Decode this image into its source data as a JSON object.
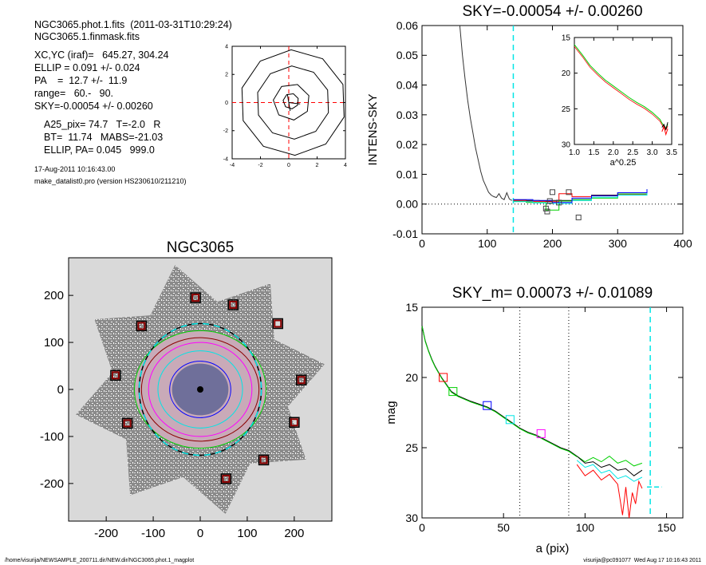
{
  "header": {
    "lines": [
      "NGC3065.phot.1.fits  (2011-03-31T10:29:24)",
      "NGC3065.1.finmask.fits"
    ],
    "params": [
      "XC,YC (iraf)=   645.27, 304.24",
      "ELLIP = 0.091 +/- 0.024",
      "PA    =  12.7 +/-  11.9",
      "range=   60.-   90.",
      "SKY=-0.00054 +/- 0.00260"
    ],
    "info": [
      "A25_pix= 74.7   T=-2.0   R",
      "BT=  11.74   MABS=-21.03",
      "ELLIP, PA= 0.045   999.0"
    ],
    "date": "17-Aug-2011 10:16:43.00",
    "program": "make_datalist0.pro (version HS230610/211210)"
  },
  "footer": {
    "path": "/home/visurija/NEWSAMPLE_200711.dir/NEW.dir/NGC3065.phot.1_magplot",
    "user": "visurija@pc091077  Wed Aug 17 10:16:43 2011"
  },
  "colors": {
    "cyan": "#00e5e5",
    "red": "#ff0000",
    "green": "#00d000",
    "blue": "#0000ff",
    "magenta": "#ff00ff",
    "darkred": "#8b0000",
    "image_bg": "#d9d9d9"
  },
  "chart_data": [
    {
      "id": "center",
      "type": "line",
      "title": "",
      "xlim": [
        -4,
        4
      ],
      "ylim": [
        -4,
        4
      ],
      "xticks": [
        -4,
        -2,
        0,
        2,
        4
      ],
      "yticks": [
        -4,
        -2,
        0,
        2,
        4
      ],
      "isophotes": [
        {
          "rx": 0.55,
          "ry": 0.55,
          "cx": 0.15,
          "cy": 0.1
        },
        {
          "rx": 1.3,
          "ry": 1.3,
          "cx": 0.2,
          "cy": 0.05
        },
        {
          "rx": 2.6,
          "ry": 2.6,
          "cx": 0.3,
          "cy": 0.0
        },
        {
          "rx": 3.75,
          "ry": 3.75,
          "cx": 0.3,
          "cy": 0.0
        }
      ],
      "crosshair_color": "red"
    },
    {
      "id": "sky",
      "type": "line",
      "title": "SKY=-0.00054 +/- 0.00260",
      "xlabel": "",
      "ylabel": "INTENS-SKY",
      "xlim": [
        0,
        400
      ],
      "ylim": [
        -0.01,
        0.06
      ],
      "xticks": [
        0,
        100,
        200,
        300,
        400
      ],
      "yticks": [
        -0.01,
        0.0,
        0.01,
        0.02,
        0.03,
        0.04,
        0.05,
        0.06
      ],
      "vline": 140,
      "profile": {
        "x": [
          58,
          62,
          66,
          70,
          74,
          78,
          82,
          86,
          90,
          94,
          98,
          102,
          106,
          110,
          114,
          118,
          122,
          126,
          130,
          134,
          138
        ],
        "y": [
          0.06,
          0.05,
          0.042,
          0.035,
          0.029,
          0.024,
          0.019,
          0.015,
          0.011,
          0.008,
          0.006,
          0.004,
          0.003,
          0.0025,
          0.0022,
          0.0035,
          0.002,
          0.0015,
          0.0038,
          0.0017,
          0.0012
        ]
      },
      "series": [
        {
          "color": "black",
          "x": [
            140,
            160,
            180,
            200,
            230,
            260,
            300,
            345
          ],
          "y": [
            0.0013,
            0.0012,
            0.001,
            0.0012,
            0.0015,
            0.003,
            0.0038,
            0.0045
          ]
        },
        {
          "color": "red",
          "x": [
            140,
            160,
            190,
            210,
            230,
            260,
            300,
            345
          ],
          "y": [
            0.0012,
            0.0009,
            0.0008,
            0.0035,
            0.0025,
            0.0028,
            0.0033,
            0.004
          ]
        },
        {
          "color": "green",
          "x": [
            140,
            160,
            190,
            210,
            230,
            260,
            300,
            345
          ],
          "y": [
            0.0009,
            0.0005,
            -0.002,
            0.001,
            0.0015,
            0.002,
            0.0034,
            0.005
          ]
        },
        {
          "color": "cyan",
          "x": [
            140,
            170,
            200,
            230,
            260,
            300,
            345
          ],
          "y": [
            0.0008,
            0.0004,
            0.0002,
            0.0012,
            0.0023,
            0.003,
            0.0048
          ]
        },
        {
          "color": "blue",
          "x": [
            140,
            170,
            200,
            230,
            260,
            300,
            345
          ],
          "y": [
            0.0015,
            0.0012,
            0.0005,
            0.002,
            0.0028,
            0.0038,
            0.005
          ]
        }
      ],
      "boxes": {
        "x": [
          190,
          192,
          196,
          200,
          210,
          225,
          240
        ],
        "y": [
          -0.0015,
          -0.0025,
          0.001,
          0.004,
          0.0005,
          0.004,
          -0.0045
        ]
      },
      "inset": {
        "xlabel": "a^0.25",
        "xlim": [
          1.0,
          3.5
        ],
        "ylim": [
          15,
          30
        ],
        "xticks": [
          1.0,
          1.5,
          2.0,
          2.5,
          3.0,
          3.5
        ],
        "yticks": [
          15,
          20,
          25,
          30
        ],
        "x": [
          1.0,
          1.2,
          1.4,
          1.6,
          1.8,
          2.0,
          2.2,
          2.4,
          2.6,
          2.8,
          3.0,
          3.1,
          3.2,
          3.25,
          3.3,
          3.35,
          3.4
        ],
        "y": [
          16.0,
          17.4,
          18.9,
          20.0,
          21.0,
          21.8,
          22.6,
          23.4,
          24.1,
          24.7,
          25.5,
          26.0,
          26.5,
          27.0,
          27.4,
          27.7,
          27.2
        ],
        "tail_red": [
          [
            3.25,
            28.2
          ],
          [
            3.3,
            27.5
          ],
          [
            3.35,
            28.6
          ],
          [
            3.4,
            27.8
          ]
        ],
        "tail_black": [
          [
            3.25,
            27.6
          ],
          [
            3.3,
            27.2
          ],
          [
            3.35,
            27.9
          ],
          [
            3.4,
            26.9
          ]
        ]
      }
    },
    {
      "id": "image",
      "type": "scatter",
      "title": "NGC3065",
      "xlim": [
        -280,
        280
      ],
      "ylim": [
        -280,
        280
      ],
      "xticks": [
        -200,
        -100,
        0,
        100,
        200
      ],
      "yticks": [
        -200,
        -100,
        0,
        100,
        200
      ],
      "dashed_ellipse": {
        "rx": 130,
        "ry": 140
      },
      "isophotes": [
        {
          "rx": 65,
          "ry": 60,
          "color": "blue"
        },
        {
          "rx": 90,
          "ry": 82,
          "color": "cyan"
        },
        {
          "rx": 110,
          "ry": 100,
          "color": "magenta"
        },
        {
          "rx": 125,
          "ry": 110,
          "color": "darkred"
        },
        {
          "rx": 140,
          "ry": 125,
          "color": "green"
        }
      ],
      "sky_boxes": {
        "x": [
          -10,
          70,
          -125,
          165,
          -180,
          215,
          -155,
          200,
          135,
          55
        ],
        "y": [
          195,
          180,
          135,
          140,
          30,
          20,
          -72,
          -70,
          -150,
          -190
        ]
      }
    },
    {
      "id": "mag",
      "type": "line",
      "title": "SKY_m=  0.00073 +/- 0.01089",
      "xlabel": "a (pix)",
      "ylabel": "mag",
      "xlim": [
        0,
        160
      ],
      "ylim": [
        15,
        30
      ],
      "xticks": [
        0,
        50,
        100,
        150
      ],
      "yticks": [
        15,
        20,
        25,
        30
      ],
      "vlines_dotted": [
        60,
        90
      ],
      "vline_cyan": 140,
      "sky_mark": {
        "x0": 138,
        "x1": 147,
        "y": 27.8
      },
      "profile": {
        "x": [
          0,
          2,
          4,
          6,
          8,
          10,
          12,
          15,
          18,
          22,
          26,
          30,
          35,
          40,
          45,
          50,
          55,
          60,
          65,
          70,
          75,
          80,
          85,
          90,
          95,
          100,
          105,
          110,
          115,
          120,
          125,
          130,
          135
        ],
        "y": [
          16.3,
          17.4,
          18.1,
          18.7,
          19.2,
          19.6,
          20.0,
          20.5,
          21.0,
          21.3,
          21.5,
          21.7,
          21.9,
          22.1,
          22.4,
          22.8,
          23.2,
          23.6,
          23.9,
          24.1,
          24.4,
          24.7,
          25.0,
          25.2,
          25.6,
          26.1,
          26.0,
          26.4,
          26.2,
          26.6,
          26.5,
          27.0,
          26.6
        ]
      },
      "tails": [
        {
          "color": "red",
          "x": [
            95,
            100,
            105,
            110,
            115,
            120,
            123,
            125,
            127,
            129,
            131,
            133,
            135
          ],
          "y": [
            26.2,
            27.0,
            26.6,
            27.3,
            26.9,
            27.6,
            29.8,
            27.8,
            30.0,
            28.2,
            29.0,
            27.4,
            27.9
          ]
        },
        {
          "color": "green",
          "x": [
            95,
            100,
            105,
            110,
            115,
            120,
            125,
            130,
            135
          ],
          "y": [
            25.6,
            26.0,
            25.7,
            26.0,
            25.6,
            26.1,
            25.9,
            26.3,
            26.1
          ]
        },
        {
          "color": "cyan",
          "x": [
            95,
            100,
            105,
            110,
            115,
            120,
            125,
            130,
            135
          ],
          "y": [
            25.9,
            26.4,
            26.2,
            26.8,
            26.6,
            27.2,
            27.0,
            27.4,
            27.1
          ]
        }
      ],
      "markers": [
        {
          "x": 13,
          "y": 20.0,
          "color": "red"
        },
        {
          "x": 19,
          "y": 21.0,
          "color": "green"
        },
        {
          "x": 40,
          "y": 22.0,
          "color": "blue"
        },
        {
          "x": 54,
          "y": 23.0,
          "color": "cyan"
        },
        {
          "x": 73,
          "y": 24.0,
          "color": "magenta"
        }
      ]
    }
  ]
}
